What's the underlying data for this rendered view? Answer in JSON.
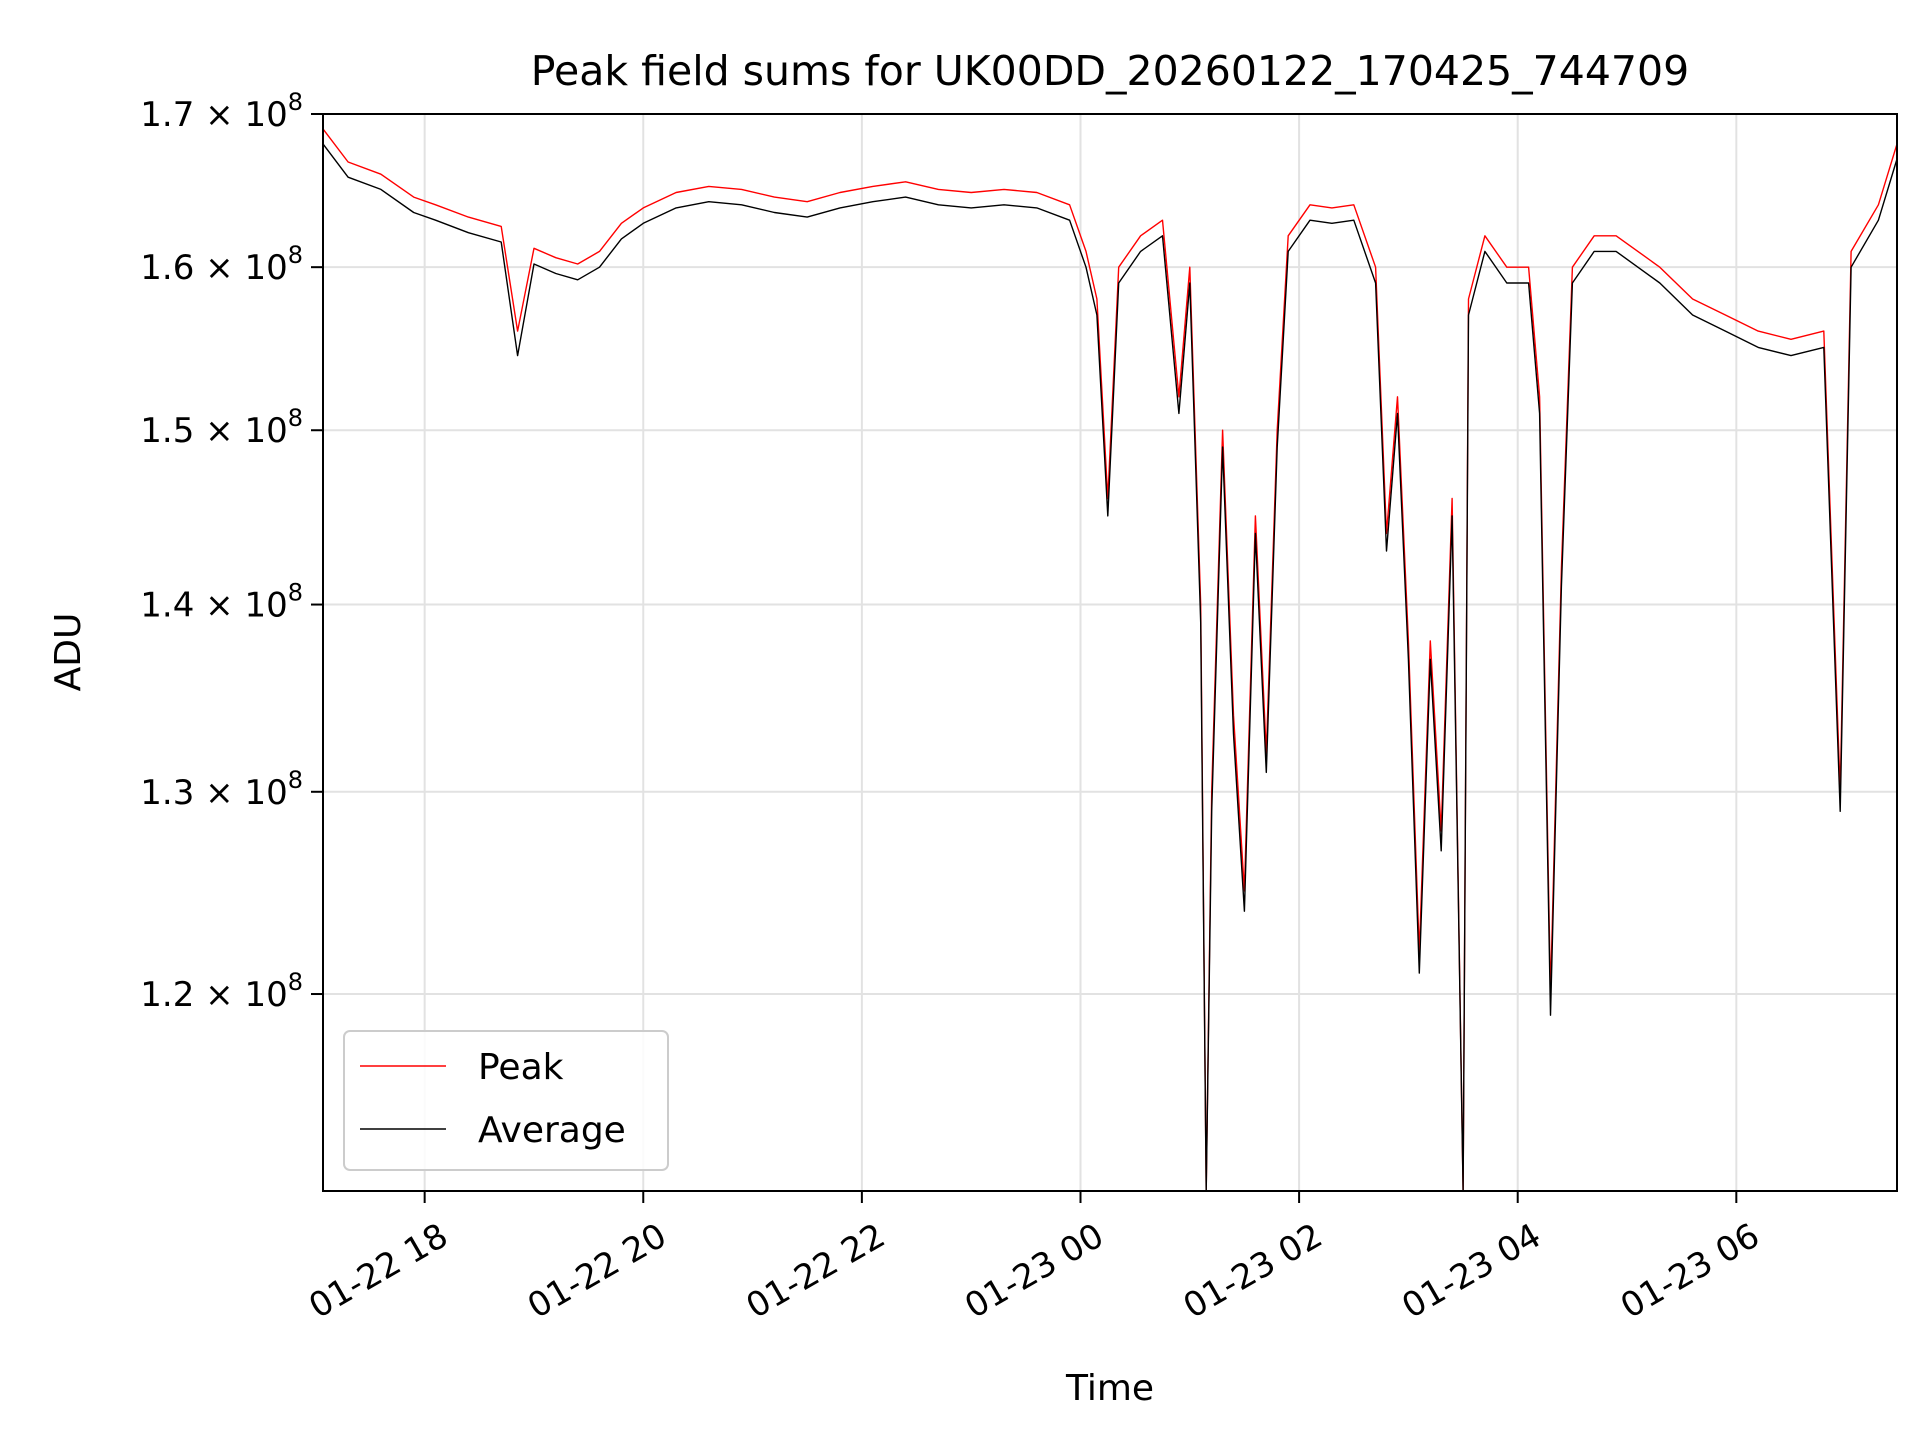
{
  "chart_data": {
    "type": "line",
    "title": "Peak field sums for UK00DD_20260122_170425_744709",
    "xlabel": "Time",
    "ylabel": "ADU",
    "yscale": "log",
    "ylim": [
      111000000,
      170000000
    ],
    "xlim_hours": [
      17.07,
      31.47
    ],
    "x_ticks": [
      {
        "hour": 18,
        "label": "01-22 18"
      },
      {
        "hour": 20,
        "label": "01-22 20"
      },
      {
        "hour": 22,
        "label": "01-22 22"
      },
      {
        "hour": 24,
        "label": "01-23 00"
      },
      {
        "hour": 26,
        "label": "01-23 02"
      },
      {
        "hour": 28,
        "label": "01-23 04"
      },
      {
        "hour": 30,
        "label": "01-23 06"
      }
    ],
    "y_ticks": [
      {
        "value": 120000000,
        "mantissa": "1.2",
        "exp": "8"
      },
      {
        "value": 130000000,
        "mantissa": "1.3",
        "exp": "8"
      },
      {
        "value": 140000000,
        "mantissa": "1.4",
        "exp": "8"
      },
      {
        "value": 150000000,
        "mantissa": "1.5",
        "exp": "8"
      },
      {
        "value": 160000000,
        "mantissa": "1.6",
        "exp": "8"
      },
      {
        "value": 170000000,
        "mantissa": "1.7",
        "exp": "8"
      }
    ],
    "grid": true,
    "legend_position": "lower-left",
    "series": [
      {
        "name": "Peak",
        "color": "#ff0000",
        "values_unit": "1e8 ADU",
        "sampling": "approximate trace, hours since 01-22 00:00",
        "points": [
          [
            17.07,
            1.69
          ],
          [
            17.3,
            1.668
          ],
          [
            17.6,
            1.66
          ],
          [
            17.9,
            1.645
          ],
          [
            18.1,
            1.64
          ],
          [
            18.4,
            1.632
          ],
          [
            18.7,
            1.626
          ],
          [
            18.85,
            1.56
          ],
          [
            19.0,
            1.612
          ],
          [
            19.2,
            1.606
          ],
          [
            19.4,
            1.602
          ],
          [
            19.6,
            1.61
          ],
          [
            19.8,
            1.628
          ],
          [
            20.0,
            1.638
          ],
          [
            20.3,
            1.648
          ],
          [
            20.6,
            1.652
          ],
          [
            20.9,
            1.65
          ],
          [
            21.2,
            1.645
          ],
          [
            21.5,
            1.642
          ],
          [
            21.8,
            1.648
          ],
          [
            22.1,
            1.652
          ],
          [
            22.4,
            1.655
          ],
          [
            22.7,
            1.65
          ],
          [
            23.0,
            1.648
          ],
          [
            23.3,
            1.65
          ],
          [
            23.6,
            1.648
          ],
          [
            23.9,
            1.64
          ],
          [
            24.05,
            1.61
          ],
          [
            24.15,
            1.58
          ],
          [
            24.25,
            1.46
          ],
          [
            24.35,
            1.6
          ],
          [
            24.55,
            1.62
          ],
          [
            24.75,
            1.63
          ],
          [
            24.9,
            1.52
          ],
          [
            25.0,
            1.6
          ],
          [
            25.1,
            1.4
          ],
          [
            25.15,
            1.1
          ],
          [
            25.2,
            1.3
          ],
          [
            25.3,
            1.5
          ],
          [
            25.4,
            1.34
          ],
          [
            25.5,
            1.25
          ],
          [
            25.6,
            1.45
          ],
          [
            25.7,
            1.32
          ],
          [
            25.8,
            1.5
          ],
          [
            25.9,
            1.62
          ],
          [
            26.1,
            1.64
          ],
          [
            26.3,
            1.638
          ],
          [
            26.5,
            1.64
          ],
          [
            26.7,
            1.6
          ],
          [
            26.8,
            1.44
          ],
          [
            26.9,
            1.52
          ],
          [
            27.0,
            1.38
          ],
          [
            27.1,
            1.22
          ],
          [
            27.2,
            1.38
          ],
          [
            27.3,
            1.28
          ],
          [
            27.4,
            1.46
          ],
          [
            27.5,
            1.1
          ],
          [
            27.55,
            1.58
          ],
          [
            27.7,
            1.62
          ],
          [
            27.9,
            1.6
          ],
          [
            28.1,
            1.6
          ],
          [
            28.2,
            1.52
          ],
          [
            28.3,
            1.2
          ],
          [
            28.4,
            1.42
          ],
          [
            28.5,
            1.6
          ],
          [
            28.7,
            1.62
          ],
          [
            28.9,
            1.62
          ],
          [
            29.1,
            1.61
          ],
          [
            29.3,
            1.6
          ],
          [
            29.6,
            1.58
          ],
          [
            29.9,
            1.57
          ],
          [
            30.2,
            1.56
          ],
          [
            30.5,
            1.555
          ],
          [
            30.8,
            1.56
          ],
          [
            30.95,
            1.3
          ],
          [
            31.05,
            1.61
          ],
          [
            31.3,
            1.64
          ],
          [
            31.47,
            1.68
          ]
        ]
      },
      {
        "name": "Average",
        "color": "#000000",
        "values_unit": "1e8 ADU",
        "sampling": "approximate trace, hours since 01-22 00:00",
        "points": [
          [
            17.07,
            1.68
          ],
          [
            17.3,
            1.658
          ],
          [
            17.6,
            1.65
          ],
          [
            17.9,
            1.635
          ],
          [
            18.1,
            1.63
          ],
          [
            18.4,
            1.622
          ],
          [
            18.7,
            1.616
          ],
          [
            18.85,
            1.545
          ],
          [
            19.0,
            1.602
          ],
          [
            19.2,
            1.596
          ],
          [
            19.4,
            1.592
          ],
          [
            19.6,
            1.6
          ],
          [
            19.8,
            1.618
          ],
          [
            20.0,
            1.628
          ],
          [
            20.3,
            1.638
          ],
          [
            20.6,
            1.642
          ],
          [
            20.9,
            1.64
          ],
          [
            21.2,
            1.635
          ],
          [
            21.5,
            1.632
          ],
          [
            21.8,
            1.638
          ],
          [
            22.1,
            1.642
          ],
          [
            22.4,
            1.645
          ],
          [
            22.7,
            1.64
          ],
          [
            23.0,
            1.638
          ],
          [
            23.3,
            1.64
          ],
          [
            23.6,
            1.638
          ],
          [
            23.9,
            1.63
          ],
          [
            24.05,
            1.6
          ],
          [
            24.15,
            1.57
          ],
          [
            24.25,
            1.45
          ],
          [
            24.35,
            1.59
          ],
          [
            24.55,
            1.61
          ],
          [
            24.75,
            1.62
          ],
          [
            24.9,
            1.51
          ],
          [
            25.0,
            1.59
          ],
          [
            25.1,
            1.39
          ],
          [
            25.15,
            1.09
          ],
          [
            25.2,
            1.29
          ],
          [
            25.3,
            1.49
          ],
          [
            25.4,
            1.33
          ],
          [
            25.5,
            1.24
          ],
          [
            25.6,
            1.44
          ],
          [
            25.7,
            1.31
          ],
          [
            25.8,
            1.49
          ],
          [
            25.9,
            1.61
          ],
          [
            26.1,
            1.63
          ],
          [
            26.3,
            1.628
          ],
          [
            26.5,
            1.63
          ],
          [
            26.7,
            1.59
          ],
          [
            26.8,
            1.43
          ],
          [
            26.9,
            1.51
          ],
          [
            27.0,
            1.37
          ],
          [
            27.1,
            1.21
          ],
          [
            27.2,
            1.37
          ],
          [
            27.3,
            1.27
          ],
          [
            27.4,
            1.45
          ],
          [
            27.5,
            1.09
          ],
          [
            27.55,
            1.57
          ],
          [
            27.7,
            1.61
          ],
          [
            27.9,
            1.59
          ],
          [
            28.1,
            1.59
          ],
          [
            28.2,
            1.51
          ],
          [
            28.3,
            1.19
          ],
          [
            28.4,
            1.41
          ],
          [
            28.5,
            1.59
          ],
          [
            28.7,
            1.61
          ],
          [
            28.9,
            1.61
          ],
          [
            29.1,
            1.6
          ],
          [
            29.3,
            1.59
          ],
          [
            29.6,
            1.57
          ],
          [
            29.9,
            1.56
          ],
          [
            30.2,
            1.55
          ],
          [
            30.5,
            1.545
          ],
          [
            30.8,
            1.55
          ],
          [
            30.95,
            1.29
          ],
          [
            31.05,
            1.6
          ],
          [
            31.3,
            1.63
          ],
          [
            31.47,
            1.67
          ]
        ]
      }
    ]
  }
}
